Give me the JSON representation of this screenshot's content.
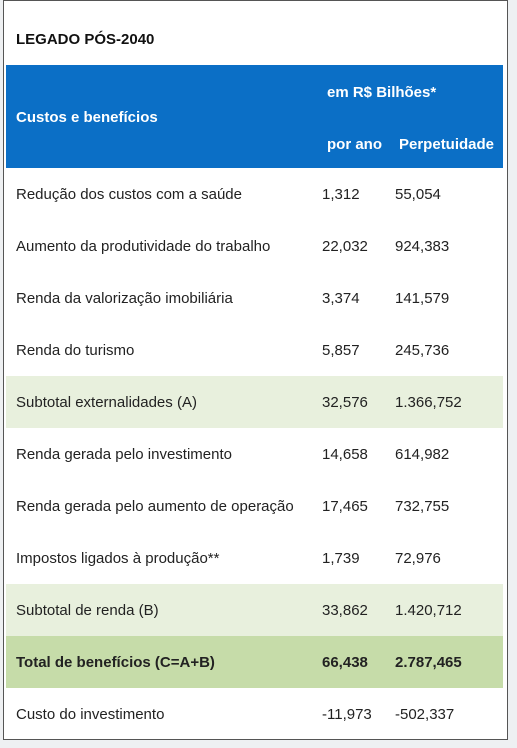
{
  "header": {
    "title": "LEGADO PÓS-2040",
    "row_label": "Custos e benefícios",
    "unit": "em R$ Bilhões*",
    "col1": "por ano",
    "col2": "Perpetuidade"
  },
  "table": {
    "rows": [
      [
        "Redução dos custos com a saúde",
        "1,312",
        "55,054"
      ],
      [
        "Aumento da produtividade do trabalho",
        "22,032",
        "924,383"
      ],
      [
        "Renda da valorização imobiliária",
        "3,374",
        "141,579"
      ],
      [
        "Renda do turismo",
        "5,857",
        "245,736"
      ],
      [
        "Subtotal externalidades (A)",
        "32,576",
        "1.366,752"
      ],
      [
        "Renda gerada pelo investimento",
        "14,658",
        "614,982"
      ],
      [
        "Renda gerada pelo aumento de operação",
        "17,465",
        "732,755"
      ],
      [
        "Impostos ligados à produção**",
        "1,739",
        "72,976"
      ],
      [
        "Subtotal de renda (B)",
        "33,862",
        "1.420,712"
      ],
      [
        "Total de benefícios (C=A+B)",
        "66,438",
        "2.787,465"
      ],
      [
        "Custo do investimento",
        "-11,973",
        "-502,337"
      ]
    ]
  }
}
